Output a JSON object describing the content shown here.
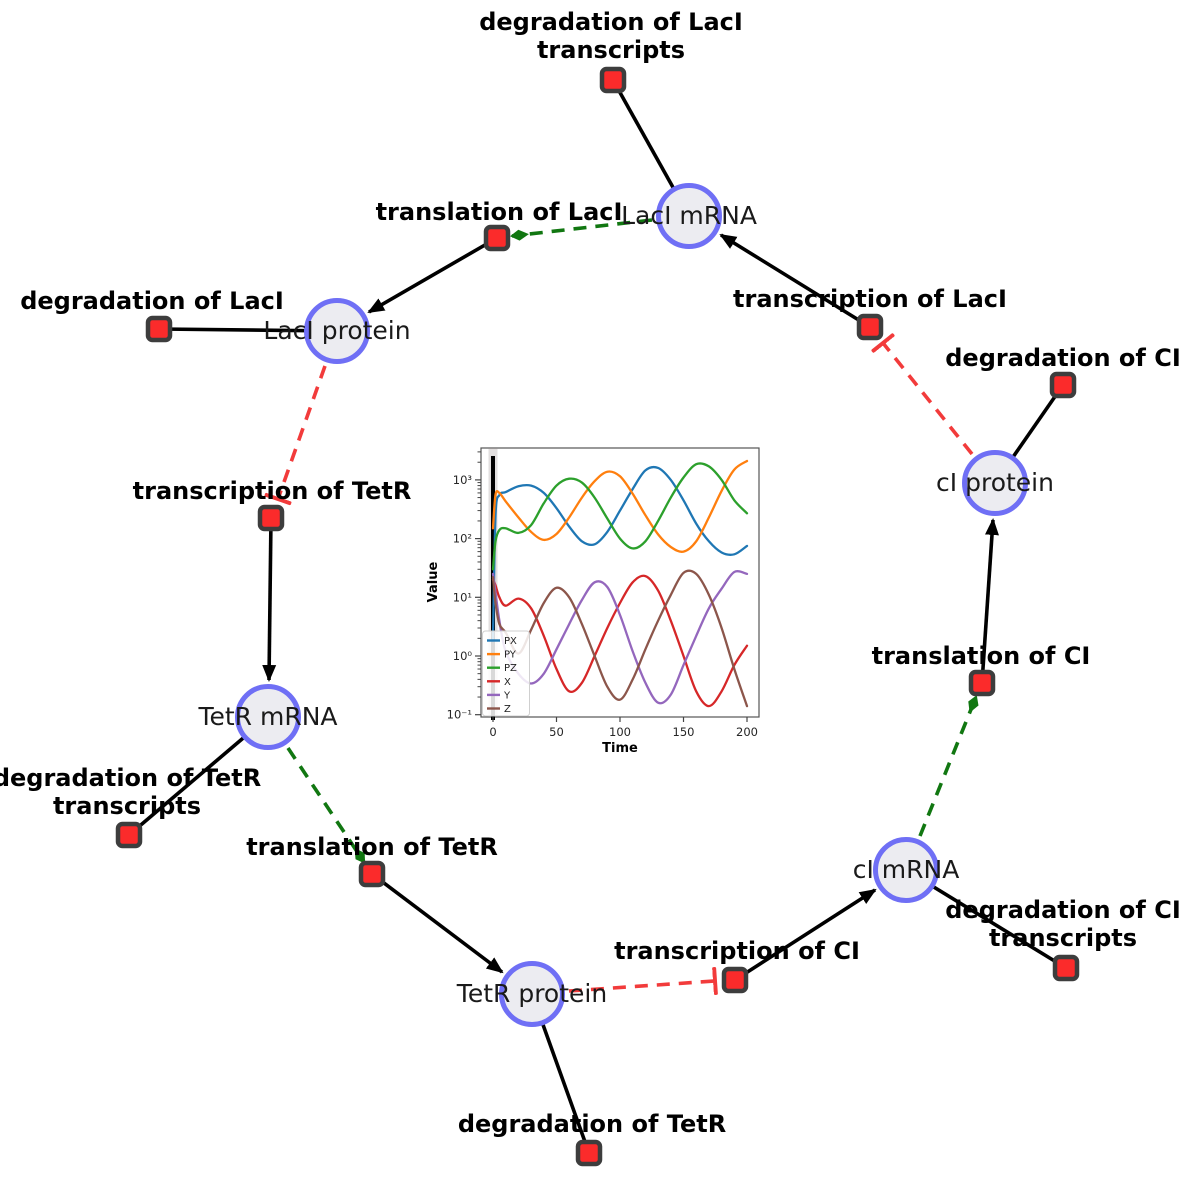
{
  "diagram": {
    "species": [
      {
        "id": "laci-mrna",
        "label": "LacI mRNA"
      },
      {
        "id": "laci-protein",
        "label": "LacI protein"
      },
      {
        "id": "ci-protein",
        "label": "cI protein"
      },
      {
        "id": "tetr-mrna",
        "label": "TetR mRNA"
      },
      {
        "id": "ci-mrna",
        "label": "cI mRNA"
      },
      {
        "id": "tetr-protein",
        "label": "TetR protein"
      }
    ],
    "reactions": [
      {
        "id": "degradation-of-laci-transcripts",
        "lines": [
          "degradation of LacI",
          "transcripts"
        ]
      },
      {
        "id": "translation-of-laci",
        "lines": [
          "translation of LacI"
        ]
      },
      {
        "id": "transcription-of-laci",
        "lines": [
          "transcription of LacI"
        ]
      },
      {
        "id": "degradation-of-laci",
        "lines": [
          "degradation of LacI"
        ]
      },
      {
        "id": "degradation-of-ci",
        "lines": [
          "degradation of CI"
        ]
      },
      {
        "id": "transcription-of-tetr",
        "lines": [
          "transcription of TetR"
        ]
      },
      {
        "id": "translation-of-ci",
        "lines": [
          "translation of CI"
        ]
      },
      {
        "id": "degradation-of-tetr-transcripts",
        "lines": [
          "degradation of TetR",
          "transcripts"
        ]
      },
      {
        "id": "translation-of-tetr",
        "lines": [
          "translation of TetR"
        ]
      },
      {
        "id": "transcription-of-ci",
        "lines": [
          "transcription of CI"
        ]
      },
      {
        "id": "degradation-of-ci-transcripts",
        "lines": [
          "degradation of CI",
          "transcripts"
        ]
      },
      {
        "id": "degradation-of-tetr",
        "lines": [
          "degradation of TetR"
        ]
      }
    ],
    "edges": [
      {
        "from": "laci-mrna",
        "to": "degradation-of-laci-transcripts",
        "type": "consumption"
      },
      {
        "from": "laci-protein",
        "to": "degradation-of-laci",
        "type": "consumption"
      },
      {
        "from": "ci-protein",
        "to": "degradation-of-ci",
        "type": "consumption"
      },
      {
        "from": "tetr-mrna",
        "to": "degradation-of-tetr-transcripts",
        "type": "consumption"
      },
      {
        "from": "tetr-protein",
        "to": "degradation-of-tetr",
        "type": "consumption"
      },
      {
        "from": "ci-mrna",
        "to": "degradation-of-ci-transcripts",
        "type": "consumption"
      },
      {
        "from": "translation-of-laci",
        "to": "laci-protein",
        "type": "production"
      },
      {
        "from": "transcription-of-laci",
        "to": "laci-mrna",
        "type": "production"
      },
      {
        "from": "transcription-of-tetr",
        "to": "tetr-mrna",
        "type": "production"
      },
      {
        "from": "translation-of-ci",
        "to": "ci-protein",
        "type": "production"
      },
      {
        "from": "translation-of-tetr",
        "to": "tetr-protein",
        "type": "production"
      },
      {
        "from": "transcription-of-ci",
        "to": "ci-mrna",
        "type": "production"
      },
      {
        "from": "laci-mrna",
        "to": "translation-of-laci",
        "type": "catalysis"
      },
      {
        "from": "tetr-mrna",
        "to": "translation-of-tetr",
        "type": "catalysis"
      },
      {
        "from": "ci-mrna",
        "to": "translation-of-ci",
        "type": "catalysis"
      },
      {
        "from": "laci-protein",
        "to": "transcription-of-tetr",
        "type": "inhibition"
      },
      {
        "from": "tetr-protein",
        "to": "transcription-of-ci",
        "type": "inhibition"
      },
      {
        "from": "ci-protein",
        "to": "transcription-of-laci",
        "type": "inhibition"
      }
    ],
    "colors": {
      "species_fill": "#ececf1",
      "species_stroke": "#6f6ff5",
      "reaction_fill": "#fb2b2b",
      "reaction_stroke": "#3d3d3d",
      "consumption_production": "#000000",
      "catalysis": "#117711",
      "inhibition": "#f23b3b"
    }
  },
  "chart_data": {
    "type": "line",
    "xlabel": "Time",
    "ylabel": "Value",
    "y_scale": "log",
    "x_ticks": [
      0,
      50,
      100,
      150,
      200
    ],
    "y_ticks": [
      0.1,
      1,
      10,
      100,
      1000
    ],
    "y_tick_labels": [
      "10⁻¹",
      "10⁰",
      "10¹",
      "10²",
      "10³"
    ],
    "xlim": [
      -9,
      209
    ],
    "ylim": [
      0.09,
      3500
    ],
    "legend_position": "lower left",
    "vline": {
      "x": 0,
      "color": "#000000"
    },
    "x": [
      0,
      2,
      5,
      10,
      20,
      30,
      40,
      50,
      60,
      70,
      80,
      90,
      100,
      110,
      120,
      130,
      140,
      150,
      160,
      170,
      180,
      190,
      200
    ],
    "series": [
      {
        "name": "PX",
        "color": "#1f77b4",
        "values": [
          2,
          250,
          550,
          620,
          780,
          800,
          600,
          330,
          160,
          90,
          80,
          130,
          300,
          700,
          1450,
          1600,
          1000,
          450,
          180,
          90,
          58,
          54,
          75
        ]
      },
      {
        "name": "PY",
        "color": "#ff7f0e",
        "values": [
          150,
          560,
          600,
          430,
          230,
          130,
          95,
          120,
          230,
          500,
          950,
          1380,
          1150,
          580,
          250,
          118,
          72,
          60,
          90,
          230,
          650,
          1500,
          2100
        ]
      },
      {
        "name": "PZ",
        "color": "#2ca02c",
        "values": [
          30,
          90,
          140,
          150,
          125,
          170,
          400,
          800,
          1050,
          900,
          500,
          220,
          100,
          68,
          90,
          200,
          500,
          1100,
          1850,
          1700,
          1000,
          450,
          270
        ]
      },
      {
        "name": "X",
        "color": "#d62728",
        "values": [
          20,
          16,
          10,
          7.2,
          9.5,
          6.5,
          2.2,
          0.6,
          0.25,
          0.35,
          1.0,
          3.0,
          8,
          18,
          23,
          13,
          4,
          1.0,
          0.25,
          0.14,
          0.25,
          0.7,
          1.5
        ]
      },
      {
        "name": "Y",
        "color": "#9467bd",
        "values": [
          25,
          12,
          4,
          1.2,
          0.5,
          0.34,
          0.5,
          1.3,
          3.5,
          9,
          18,
          15,
          5,
          1.2,
          0.35,
          0.16,
          0.22,
          0.7,
          2.2,
          6.5,
          14,
          27,
          25
        ]
      },
      {
        "name": "Z",
        "color": "#8c564b",
        "values": [
          22,
          8,
          3.5,
          2.5,
          1.1,
          2.8,
          8,
          14.5,
          10,
          3.5,
          1.0,
          0.3,
          0.18,
          0.4,
          1.3,
          4,
          11,
          26,
          25,
          11,
          3,
          0.6,
          0.14
        ]
      }
    ]
  }
}
